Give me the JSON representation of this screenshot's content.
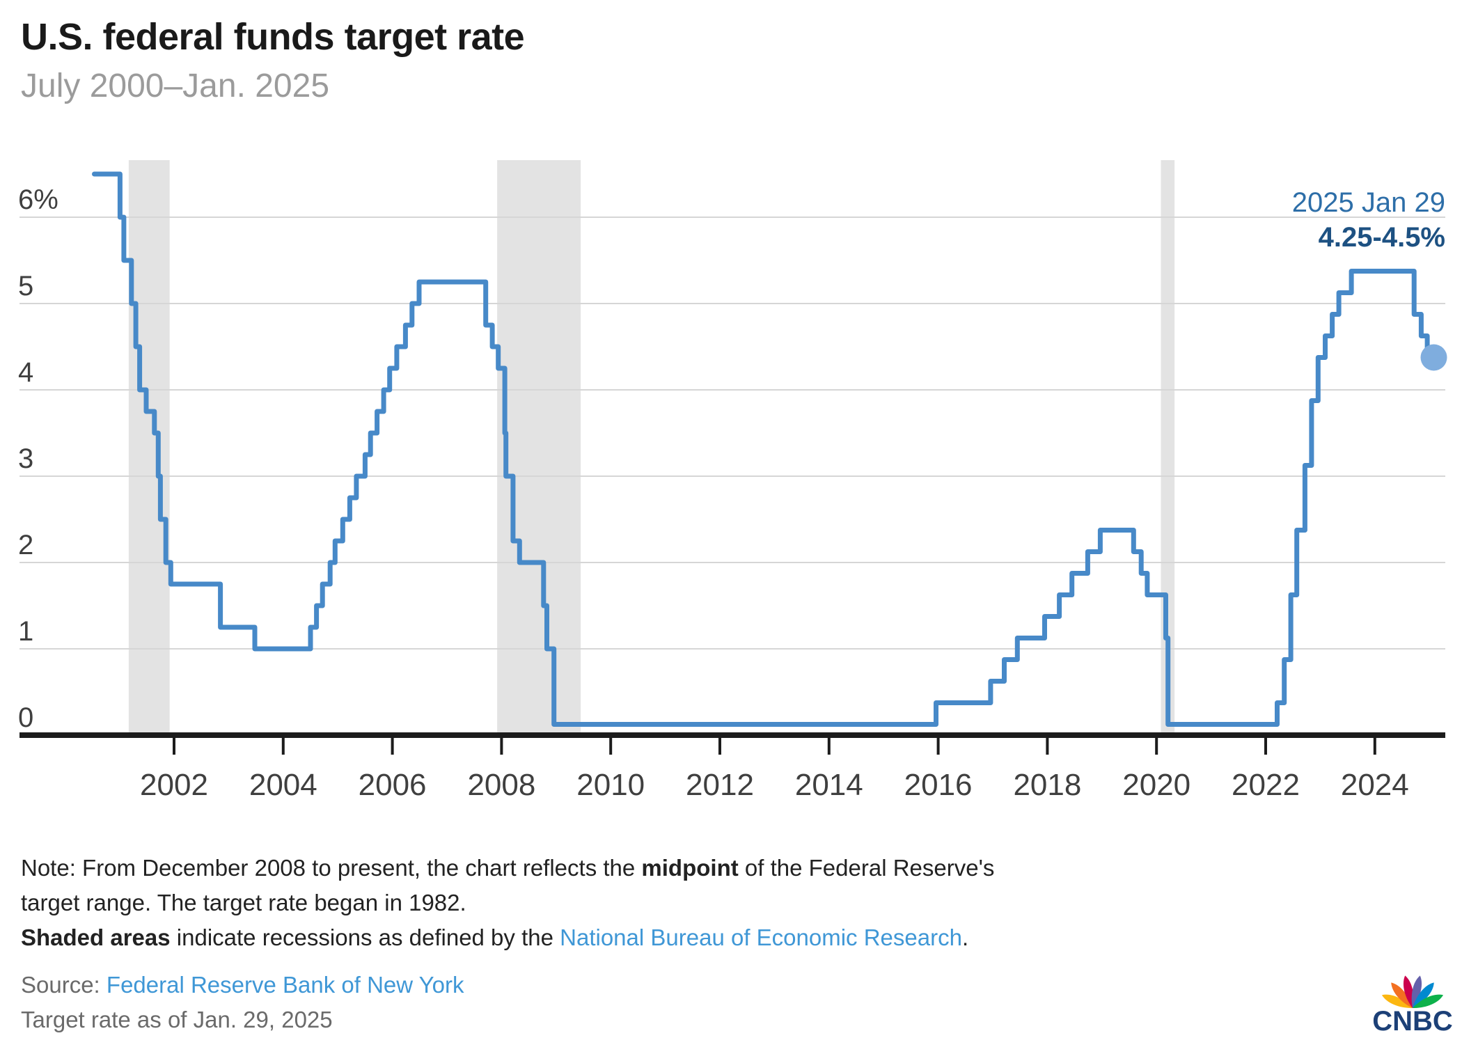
{
  "header": {
    "title": "U.S. federal funds target rate",
    "subtitle": "July 2000–Jan. 2025"
  },
  "annotation": {
    "date": "2025 Jan 29",
    "value": "4.25-4.5%"
  },
  "notes": {
    "note_prefix": "Note: From December 2008 to present, the chart reflects the ",
    "note_bold": "midpoint",
    "note_suffix": " of the Federal Reserve's target range. The target rate began in 1982.",
    "shaded_bold": "Shaded areas",
    "shaded_mid": " indicate recessions as defined by the ",
    "shaded_link": "National Bureau of Economic Research",
    "shaded_end": ".",
    "source_label": "Source: ",
    "source_link": "Federal Reserve Bank of New York",
    "as_of": "Target rate as of Jan. 29, 2025"
  },
  "logo": {
    "text": "CNBC",
    "feather_colors": [
      "#FCB711",
      "#F37021",
      "#CC004C",
      "#6460AA",
      "#0089D0",
      "#0DB14B"
    ],
    "wordmark_color": "#1c4077"
  },
  "colors": {
    "line": "#4789c8",
    "end_dot": "#7fadde",
    "recession_band": "#e3e3e3",
    "gridline": "#d6d6d6",
    "axis": "#1c1c1c",
    "tick_text": "#3f3f3f"
  },
  "chart_data": {
    "type": "line",
    "step": true,
    "title": "U.S. federal funds target rate",
    "subtitle": "July 2000–Jan. 2025",
    "ylabel": "percent",
    "ylim": [
      0,
      6.5
    ],
    "x_range": [
      2000.35,
      2025.35
    ],
    "grid": true,
    "yticks": [
      {
        "v": 0,
        "label": "0"
      },
      {
        "v": 1,
        "label": "1"
      },
      {
        "v": 2,
        "label": "2"
      },
      {
        "v": 3,
        "label": "3"
      },
      {
        "v": 4,
        "label": "4"
      },
      {
        "v": 5,
        "label": "5"
      },
      {
        "v": 6,
        "label": "6%"
      }
    ],
    "xticks": [
      2002,
      2004,
      2006,
      2008,
      2010,
      2012,
      2014,
      2016,
      2018,
      2020,
      2022,
      2024
    ],
    "recessions": [
      [
        2001.17,
        2001.92
      ],
      [
        2007.92,
        2009.45
      ],
      [
        2020.08,
        2020.33
      ]
    ],
    "end_label": {
      "date": "2025 Jan 29",
      "value": "4.25-4.5%"
    },
    "series": [
      {
        "name": "Federal funds target rate (midpoint of target range from Dec. 2008)",
        "points": [
          [
            2000.54,
            6.5
          ],
          [
            2001.01,
            6.0
          ],
          [
            2001.08,
            5.5
          ],
          [
            2001.22,
            5.0
          ],
          [
            2001.3,
            4.5
          ],
          [
            2001.37,
            4.0
          ],
          [
            2001.49,
            3.75
          ],
          [
            2001.64,
            3.5
          ],
          [
            2001.71,
            3.0
          ],
          [
            2001.75,
            2.5
          ],
          [
            2001.85,
            2.0
          ],
          [
            2001.94,
            1.75
          ],
          [
            2002.85,
            1.25
          ],
          [
            2003.48,
            1.0
          ],
          [
            2004.5,
            1.25
          ],
          [
            2004.61,
            1.5
          ],
          [
            2004.72,
            1.75
          ],
          [
            2004.86,
            2.0
          ],
          [
            2004.95,
            2.25
          ],
          [
            2005.09,
            2.5
          ],
          [
            2005.22,
            2.75
          ],
          [
            2005.34,
            3.0
          ],
          [
            2005.5,
            3.25
          ],
          [
            2005.6,
            3.5
          ],
          [
            2005.72,
            3.75
          ],
          [
            2005.84,
            4.0
          ],
          [
            2005.95,
            4.25
          ],
          [
            2006.08,
            4.5
          ],
          [
            2006.24,
            4.75
          ],
          [
            2006.36,
            5.0
          ],
          [
            2006.49,
            5.25
          ],
          [
            2007.71,
            4.75
          ],
          [
            2007.83,
            4.5
          ],
          [
            2007.94,
            4.25
          ],
          [
            2008.06,
            3.5
          ],
          [
            2008.08,
            3.0
          ],
          [
            2008.21,
            2.25
          ],
          [
            2008.33,
            2.0
          ],
          [
            2008.77,
            1.5
          ],
          [
            2008.83,
            1.0
          ],
          [
            2008.96,
            0.125
          ],
          [
            2015.96,
            0.375
          ],
          [
            2016.96,
            0.625
          ],
          [
            2017.21,
            0.875
          ],
          [
            2017.45,
            1.125
          ],
          [
            2017.95,
            1.375
          ],
          [
            2018.22,
            1.625
          ],
          [
            2018.45,
            1.875
          ],
          [
            2018.74,
            2.125
          ],
          [
            2018.97,
            2.375
          ],
          [
            2019.58,
            2.125
          ],
          [
            2019.72,
            1.875
          ],
          [
            2019.83,
            1.625
          ],
          [
            2020.17,
            1.125
          ],
          [
            2020.21,
            0.125
          ],
          [
            2022.21,
            0.375
          ],
          [
            2022.34,
            0.875
          ],
          [
            2022.46,
            1.625
          ],
          [
            2022.57,
            2.375
          ],
          [
            2022.72,
            3.125
          ],
          [
            2022.84,
            3.875
          ],
          [
            2022.96,
            4.375
          ],
          [
            2023.09,
            4.625
          ],
          [
            2023.22,
            4.875
          ],
          [
            2023.34,
            5.125
          ],
          [
            2023.57,
            5.375
          ],
          [
            2024.72,
            4.875
          ],
          [
            2024.85,
            4.625
          ],
          [
            2024.96,
            4.375
          ],
          [
            2025.08,
            4.375
          ]
        ]
      }
    ]
  }
}
